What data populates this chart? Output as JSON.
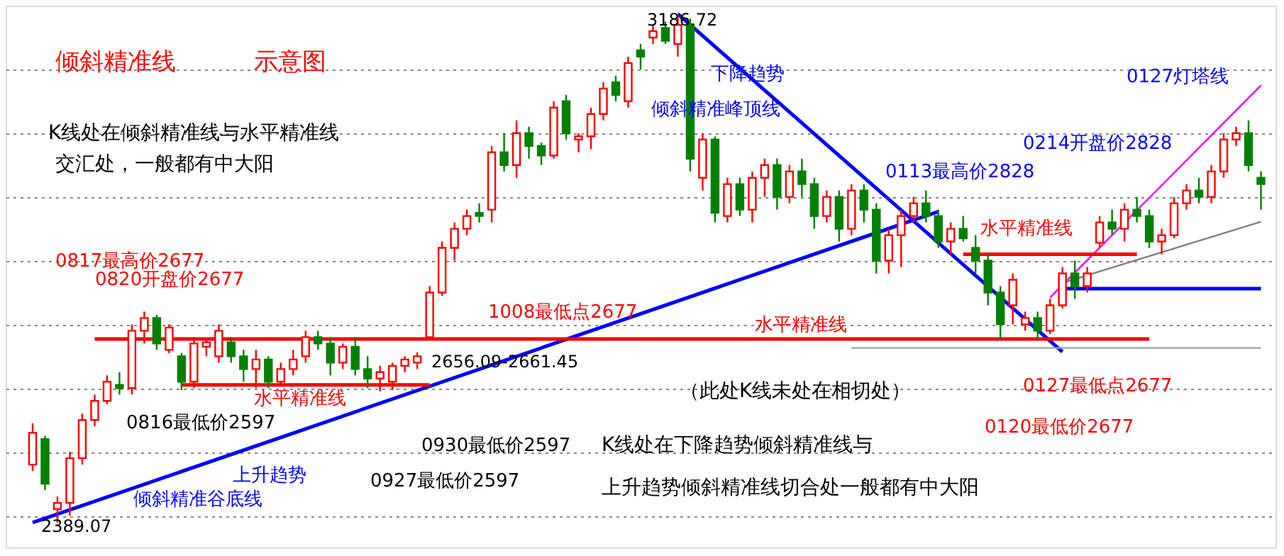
{
  "chart_data": {
    "type": "candlestick",
    "categories": [
      null,
      null,
      null,
      null,
      null,
      null,
      null,
      null,
      null,
      null,
      null,
      null,
      null,
      null,
      null,
      null,
      null,
      null,
      null,
      null,
      null,
      null,
      null,
      null,
      null,
      null,
      null,
      null,
      null,
      null,
      null,
      null,
      null,
      null,
      null,
      null,
      null,
      null,
      null,
      null,
      null,
      null,
      null,
      null,
      null,
      null,
      null,
      null,
      null,
      null,
      null,
      null,
      null,
      null,
      null,
      null,
      null,
      null,
      null,
      null,
      null,
      null,
      null,
      null,
      null,
      null,
      null,
      null,
      null,
      null,
      null,
      null,
      null,
      null,
      null,
      null,
      null,
      null,
      null,
      null,
      null,
      null,
      null,
      null,
      null,
      null,
      null,
      null,
      null,
      null,
      null,
      null,
      null,
      null,
      null,
      null,
      null,
      null,
      null,
      null
    ],
    "ohlc": [
      [
        2480,
        2545,
        2470,
        2530
      ],
      [
        2520,
        2525,
        2440,
        2450
      ],
      [
        2410,
        2430,
        2389.07,
        2420
      ],
      [
        2420,
        2500,
        2400,
        2490
      ],
      [
        2490,
        2560,
        2480,
        2550
      ],
      [
        2550,
        2590,
        2540,
        2580
      ],
      [
        2580,
        2620,
        2575,
        2610
      ],
      [
        2605,
        2625,
        2590,
        2600
      ],
      [
        2600,
        2700,
        2590,
        2690
      ],
      [
        2690,
        2720,
        2670,
        2710
      ],
      [
        2710,
        2715,
        2660,
        2670
      ],
      [
        2660,
        2700,
        2655,
        2695
      ],
      [
        2650,
        2655,
        2597,
        2610
      ],
      [
        2610,
        2680,
        2600,
        2670
      ],
      [
        2665,
        2677,
        2650,
        2672
      ],
      [
        2650,
        2700,
        2640,
        2690
      ],
      [
        2672,
        2680,
        2640,
        2650
      ],
      [
        2650,
        2660,
        2610,
        2630
      ],
      [
        2630,
        2660,
        2600,
        2645
      ],
      [
        2645,
        2650,
        2600,
        2610
      ],
      [
        2610,
        2640,
        2605,
        2630
      ],
      [
        2630,
        2660,
        2620,
        2645
      ],
      [
        2650,
        2690,
        2640,
        2680
      ],
      [
        2680,
        2690,
        2660,
        2670
      ],
      [
        2670,
        2680,
        2620,
        2640
      ],
      [
        2640,
        2670,
        2630,
        2665
      ],
      [
        2665,
        2680,
        2620,
        2630
      ],
      [
        2630,
        2650,
        2600,
        2615
      ],
      [
        2615,
        2635,
        2595,
        2625
      ],
      [
        2610,
        2640,
        2597,
        2635
      ],
      [
        2635,
        2650,
        2625,
        2645
      ],
      [
        2640,
        2656.09,
        2630,
        2650
      ],
      [
        2680,
        2760,
        2677,
        2750
      ],
      [
        2750,
        2830,
        2745,
        2820
      ],
      [
        2820,
        2860,
        2800,
        2850
      ],
      [
        2850,
        2880,
        2840,
        2870
      ],
      [
        2875,
        2890,
        2860,
        2870
      ],
      [
        2880,
        2980,
        2860,
        2970
      ],
      [
        2970,
        3000,
        2940,
        2950
      ],
      [
        2950,
        3020,
        2930,
        3000
      ],
      [
        3000,
        3010,
        2960,
        2980
      ],
      [
        2980,
        2985,
        2950,
        2965
      ],
      [
        2965,
        3050,
        2960,
        3040
      ],
      [
        3050,
        3060,
        2990,
        3000
      ],
      [
        2990,
        3000,
        2970,
        2995
      ],
      [
        2995,
        3040,
        2975,
        3030
      ],
      [
        3030,
        3080,
        3020,
        3070
      ],
      [
        3080,
        3090,
        3050,
        3060
      ],
      [
        3050,
        3120,
        3040,
        3110
      ],
      [
        3130,
        3140,
        3100,
        3120
      ],
      [
        3150,
        3170,
        3140,
        3160
      ],
      [
        3165,
        3175,
        3140,
        3145
      ],
      [
        3140,
        3186.72,
        3120,
        3170
      ],
      [
        3170,
        3180,
        2940,
        2960
      ],
      [
        2930,
        3000,
        2910,
        2990
      ],
      [
        2990,
        2995,
        2860,
        2875
      ],
      [
        2870,
        2930,
        2860,
        2920
      ],
      [
        2920,
        2930,
        2870,
        2880
      ],
      [
        2880,
        2940,
        2860,
        2930
      ],
      [
        2930,
        2960,
        2900,
        2950
      ],
      [
        2950,
        2960,
        2880,
        2900
      ],
      [
        2900,
        2950,
        2890,
        2940
      ],
      [
        2940,
        2960,
        2900,
        2920
      ],
      [
        2920,
        2930,
        2850,
        2870
      ],
      [
        2870,
        2910,
        2860,
        2900
      ],
      [
        2900,
        2910,
        2830,
        2850
      ],
      [
        2850,
        2920,
        2840,
        2910
      ],
      [
        2910,
        2920,
        2860,
        2880
      ],
      [
        2880,
        2890,
        2780,
        2800
      ],
      [
        2800,
        2850,
        2780,
        2840
      ],
      [
        2840,
        2880,
        2790,
        2870
      ],
      [
        2870,
        2900,
        2860,
        2890
      ],
      [
        2890,
        2910,
        2860,
        2870
      ],
      [
        2870,
        2880,
        2820,
        2830
      ],
      [
        2830,
        2860,
        2810,
        2850
      ],
      [
        2850,
        2870,
        2830,
        2835
      ],
      [
        2820,
        2840,
        2780,
        2800
      ],
      [
        2800,
        2810,
        2730,
        2750
      ],
      [
        2750,
        2760,
        2677,
        2700
      ],
      [
        2730,
        2780,
        2700,
        2770
      ],
      [
        2700,
        2720,
        2690,
        2710
      ],
      [
        2710,
        2720,
        2677,
        2690
      ],
      [
        2690,
        2740,
        2685,
        2730
      ],
      [
        2730,
        2790,
        2725,
        2780
      ],
      [
        2780,
        2800,
        2740,
        2760
      ],
      [
        2760,
        2790,
        2750,
        2780
      ],
      [
        2828,
        2870,
        2820,
        2860
      ],
      [
        2860,
        2880,
        2840,
        2850
      ],
      [
        2850,
        2890,
        2830,
        2880
      ],
      [
        2880,
        2900,
        2860,
        2870
      ],
      [
        2870,
        2880,
        2820,
        2830
      ],
      [
        2830,
        2850,
        2810,
        2840
      ],
      [
        2840,
        2900,
        2835,
        2890
      ],
      [
        2890,
        2920,
        2880,
        2910
      ],
      [
        2910,
        2930,
        2890,
        2900
      ],
      [
        2900,
        2950,
        2890,
        2940
      ],
      [
        2940,
        3000,
        2930,
        2990
      ],
      [
        2990,
        3010,
        2980,
        3000
      ],
      [
        3000,
        3020,
        2940,
        2950
      ],
      [
        2930,
        2940,
        2880,
        2920
      ]
    ],
    "colors": [
      "#ff0000",
      "#008000",
      "#ff0000",
      "#ff0000",
      "#ff0000",
      "#ff0000",
      "#ff0000",
      "#008000",
      "#ff0000",
      "#ff0000",
      "#008000",
      "#ff0000",
      "#008000",
      "#ff0000",
      "#ff0000",
      "#ff0000",
      "#008000",
      "#008000",
      "#ff0000",
      "#008000",
      "#ff0000",
      "#ff0000",
      "#ff0000",
      "#008000",
      "#008000",
      "#ff0000",
      "#008000",
      "#008000",
      "#ff0000",
      "#ff0000",
      "#ff0000",
      "#ff0000",
      "#ff0000",
      "#ff0000",
      "#ff0000",
      "#ff0000",
      "#008000",
      "#ff0000",
      "#008000",
      "#ff0000",
      "#008000",
      "#008000",
      "#ff0000",
      "#008000",
      "#ff0000",
      "#ff0000",
      "#ff0000",
      "#008000",
      "#ff0000",
      "#008000",
      "#ff0000",
      "#008000",
      "#ff0000",
      "#008000",
      "#ff0000",
      "#008000",
      "#ff0000",
      "#008000",
      "#ff0000",
      "#ff0000",
      "#008000",
      "#ff0000",
      "#008000",
      "#008000",
      "#ff0000",
      "#008000",
      "#ff0000",
      "#008000",
      "#008000",
      "#ff0000",
      "#ff0000",
      "#ff0000",
      "#008000",
      "#008000",
      "#ff0000",
      "#008000",
      "#008000",
      "#008000",
      "#008000",
      "#ff0000",
      "#ff0000",
      "#008000",
      "#ff0000",
      "#ff0000",
      "#008000",
      "#ff0000",
      "#ff0000",
      "#008000",
      "#ff0000",
      "#008000",
      "#008000",
      "#ff0000",
      "#ff0000",
      "#ff0000",
      "#008000",
      "#ff0000",
      "#ff0000",
      "#ff0000",
      "#008000",
      "#008000"
    ],
    "series": [
      {
        "type": "line",
        "color": "#0000ff",
        "values": [
          2389,
          null,
          null,
          null,
          null,
          null,
          null,
          null,
          null,
          null,
          null,
          null,
          null,
          null,
          null,
          null,
          null,
          null,
          null,
          null,
          null,
          null,
          null,
          null,
          null,
          null,
          null,
          null,
          null,
          null,
          null,
          null,
          null,
          null,
          null,
          null,
          null,
          null,
          null,
          null,
          null,
          null,
          null,
          null,
          null,
          null,
          null,
          null,
          null,
          null,
          null,
          null,
          null,
          null,
          null,
          null,
          null,
          null,
          null,
          null,
          null,
          null,
          null,
          null,
          null,
          null,
          null,
          null,
          null,
          null,
          null,
          null,
          null,
          2877,
          null,
          null,
          null,
          null,
          null,
          null,
          null,
          null,
          null,
          null,
          null,
          null,
          null,
          null,
          null,
          null,
          null,
          null,
          null,
          null,
          null,
          null,
          null,
          null,
          null,
          null
        ]
      },
      {
        "type": "line",
        "color": "#0000ff",
        "values": [
          null,
          null,
          null,
          null,
          null,
          null,
          null,
          null,
          null,
          null,
          null,
          null,
          null,
          null,
          null,
          null,
          null,
          null,
          null,
          null,
          null,
          null,
          null,
          null,
          null,
          null,
          null,
          null,
          null,
          null,
          null,
          null,
          null,
          null,
          null,
          null,
          null,
          null,
          null,
          null,
          null,
          null,
          null,
          null,
          null,
          null,
          null,
          null,
          null,
          null,
          null,
          null,
          3187,
          null,
          null,
          null,
          null,
          null,
          null,
          null,
          null,
          null,
          null,
          null,
          null,
          null,
          null,
          null,
          null,
          null,
          null,
          null,
          null,
          null,
          null,
          null,
          null,
          null,
          null,
          null,
          null,
          null,
          null,
          2657,
          null,
          null,
          null,
          null,
          null,
          null,
          null,
          null,
          null,
          null,
          null,
          null,
          null,
          null,
          null,
          null
        ]
      },
      {
        "type": "line",
        "color": "#ff00ff",
        "values": [
          null,
          null,
          null,
          null,
          null,
          null,
          null,
          null,
          null,
          null,
          null,
          null,
          null,
          null,
          null,
          null,
          null,
          null,
          null,
          null,
          null,
          null,
          null,
          null,
          null,
          null,
          null,
          null,
          null,
          null,
          null,
          null,
          null,
          null,
          null,
          null,
          null,
          null,
          null,
          null,
          null,
          null,
          null,
          null,
          null,
          null,
          null,
          null,
          null,
          null,
          null,
          null,
          null,
          null,
          null,
          null,
          null,
          null,
          null,
          null,
          null,
          null,
          null,
          null,
          null,
          null,
          null,
          null,
          null,
          null,
          null,
          null,
          null,
          null,
          null,
          null,
          null,
          null,
          null,
          null,
          null,
          null,
          2742,
          null,
          null,
          null,
          null,
          null,
          null,
          null,
          null,
          null,
          null,
          null,
          null,
          null,
          null,
          null,
          null,
          3075
        ]
      },
      {
        "type": "line",
        "color": "#808080",
        "values": [
          null,
          null,
          null,
          null,
          null,
          null,
          null,
          null,
          null,
          null,
          null,
          null,
          null,
          null,
          null,
          null,
          null,
          null,
          null,
          null,
          null,
          null,
          null,
          null,
          null,
          null,
          null,
          null,
          null,
          null,
          null,
          null,
          null,
          null,
          null,
          null,
          null,
          null,
          null,
          null,
          null,
          null,
          null,
          null,
          null,
          null,
          null,
          null,
          null,
          null,
          null,
          null,
          null,
          null,
          null,
          null,
          null,
          null,
          null,
          null,
          null,
          null,
          null,
          null,
          null,
          null,
          null,
          null,
          null,
          null,
          null,
          null,
          null,
          null,
          null,
          null,
          null,
          null,
          null,
          null,
          null,
          null,
          null,
          2765,
          null,
          null,
          null,
          null,
          null,
          null,
          null,
          null,
          null,
          null,
          null,
          null,
          null,
          null,
          null,
          2861
        ]
      },
      {
        "type": "line",
        "color": "#ff0000",
        "values": [
          null,
          null,
          null,
          null,
          null,
          2677,
          null,
          null,
          null,
          null,
          null,
          null,
          null,
          null,
          null,
          null,
          null,
          null,
          null,
          null,
          null,
          null,
          null,
          null,
          null,
          null,
          null,
          null,
          null,
          null,
          null,
          null,
          null,
          null,
          null,
          null,
          null,
          null,
          null,
          null,
          null,
          null,
          null,
          null,
          null,
          null,
          null,
          null,
          null,
          null,
          null,
          null,
          null,
          null,
          null,
          null,
          null,
          null,
          null,
          null,
          null,
          null,
          null,
          null,
          null,
          null,
          null,
          null,
          null,
          null,
          null,
          null,
          null,
          null,
          null,
          null,
          null,
          null,
          null,
          null,
          null,
          null,
          null,
          null,
          null,
          null,
          null,
          null,
          null,
          null,
          2677,
          null,
          null,
          null,
          null,
          null,
          null,
          null,
          null,
          null
        ]
      },
      {
        "type": "line",
        "color": "#ff0000",
        "values": [
          null,
          null,
          null,
          null,
          null,
          null,
          null,
          null,
          null,
          null,
          null,
          null,
          2605,
          null,
          null,
          null,
          null,
          null,
          null,
          null,
          null,
          null,
          null,
          null,
          null,
          null,
          null,
          null,
          null,
          null,
          null,
          null,
          2605,
          null,
          null,
          null,
          null,
          null,
          null,
          null,
          null,
          null,
          null,
          null,
          null,
          null,
          null,
          null,
          null,
          null,
          null,
          null,
          null,
          null,
          null,
          null,
          null,
          null,
          null,
          null,
          null,
          null,
          null,
          null,
          null,
          null,
          null,
          null,
          null,
          null,
          null,
          null,
          null,
          null,
          null,
          null,
          null,
          null,
          null,
          null,
          null,
          null,
          null,
          null,
          null,
          null,
          null,
          null,
          null,
          null,
          null,
          null,
          null,
          null,
          null,
          null,
          null,
          null,
          null,
          null
        ]
      },
      {
        "type": "line",
        "color": "#ff0000",
        "values": [
          null,
          null,
          null,
          null,
          null,
          null,
          null,
          null,
          null,
          null,
          null,
          null,
          null,
          null,
          null,
          null,
          null,
          null,
          null,
          null,
          null,
          null,
          null,
          null,
          null,
          null,
          null,
          null,
          null,
          null,
          null,
          null,
          null,
          null,
          null,
          null,
          null,
          null,
          null,
          null,
          null,
          null,
          null,
          null,
          null,
          null,
          null,
          null,
          null,
          null,
          null,
          null,
          null,
          null,
          null,
          null,
          null,
          null,
          null,
          null,
          null,
          null,
          null,
          null,
          null,
          null,
          null,
          null,
          null,
          null,
          null,
          null,
          null,
          null,
          null,
          2810,
          null,
          null,
          null,
          null,
          null,
          null,
          null,
          null,
          null,
          null,
          null,
          null,
          null,
          2810,
          null,
          null,
          null,
          null,
          null,
          null,
          null,
          null,
          null,
          null
        ]
      },
      {
        "type": "line",
        "color": "#0000ff",
        "values": [
          null,
          null,
          null,
          null,
          null,
          null,
          null,
          null,
          null,
          null,
          null,
          null,
          null,
          null,
          null,
          null,
          null,
          null,
          null,
          null,
          null,
          null,
          null,
          null,
          null,
          null,
          null,
          null,
          null,
          null,
          null,
          null,
          null,
          null,
          null,
          null,
          null,
          null,
          null,
          null,
          null,
          null,
          null,
          null,
          null,
          null,
          null,
          null,
          null,
          null,
          null,
          null,
          null,
          null,
          null,
          null,
          null,
          null,
          null,
          null,
          null,
          null,
          null,
          null,
          null,
          null,
          null,
          null,
          null,
          null,
          null,
          null,
          null,
          null,
          null,
          null,
          null,
          null,
          null,
          null,
          null,
          null,
          null,
          2756,
          null,
          null,
          null,
          null,
          null,
          null,
          null,
          null,
          null,
          null,
          null,
          null,
          null,
          null,
          null,
          2756
        ]
      },
      {
        "type": "line",
        "color": "#a0a0a0",
        "values": [
          null,
          null,
          null,
          null,
          null,
          null,
          null,
          null,
          null,
          null,
          null,
          null,
          null,
          null,
          null,
          null,
          null,
          null,
          null,
          null,
          null,
          null,
          null,
          null,
          null,
          null,
          null,
          null,
          null,
          null,
          null,
          null,
          null,
          null,
          null,
          null,
          null,
          null,
          null,
          null,
          null,
          null,
          null,
          null,
          null,
          null,
          null,
          null,
          null,
          null,
          null,
          null,
          null,
          null,
          null,
          null,
          null,
          null,
          null,
          null,
          null,
          null,
          null,
          null,
          null,
          null,
          2663,
          null,
          null,
          null,
          null,
          null,
          null,
          null,
          null,
          null,
          null,
          null,
          null,
          null,
          null,
          null,
          null,
          null,
          null,
          null,
          null,
          null,
          null,
          null,
          null,
          null,
          null,
          null,
          null,
          null,
          null,
          null,
          null,
          2663
        ]
      }
    ],
    "ylim": [
      2350,
      3200
    ],
    "yticks": [
      {
        "value": 2400,
        "label": null
      },
      {
        "value": 2500,
        "label": null
      },
      {
        "value": 2600,
        "label": null
      },
      {
        "value": 2700,
        "label": null
      },
      {
        "value": 2800,
        "label": null
      },
      {
        "value": 2900,
        "label": null
      },
      {
        "value": 3000,
        "label": null
      },
      {
        "value": 3100,
        "label": null
      }
    ],
    "grid": "y",
    "tick_labels": false,
    "annotations": [
      "倾斜精准线",
      "示意图",
      "K线处在倾斜精准线与水平精准线",
      "交汇处，一般都有中大阳",
      "下降趋势",
      "倾斜精准峰顶线",
      "0127灯塔线",
      "0214开盘价2828",
      "0113最高价2828",
      "水平精准线",
      "0817最高价2677",
      "0820开盘价2677",
      "1008最低点2677",
      "水平精准线",
      "2656.09-2661.45",
      "水平精准线",
      "0816最低价2597",
      "（此处K线未处在相切处）",
      "0127最低点2677",
      "0120最低价2677",
      "上升趋势",
      "倾斜精准谷底线",
      "0930最低价2597",
      "0927最低价2597",
      "K线处在下降趋势倾斜精准线与",
      "上升趋势倾斜精准线切合处一般都有中大阳",
      "3186.72",
      "2389.07"
    ]
  }
}
